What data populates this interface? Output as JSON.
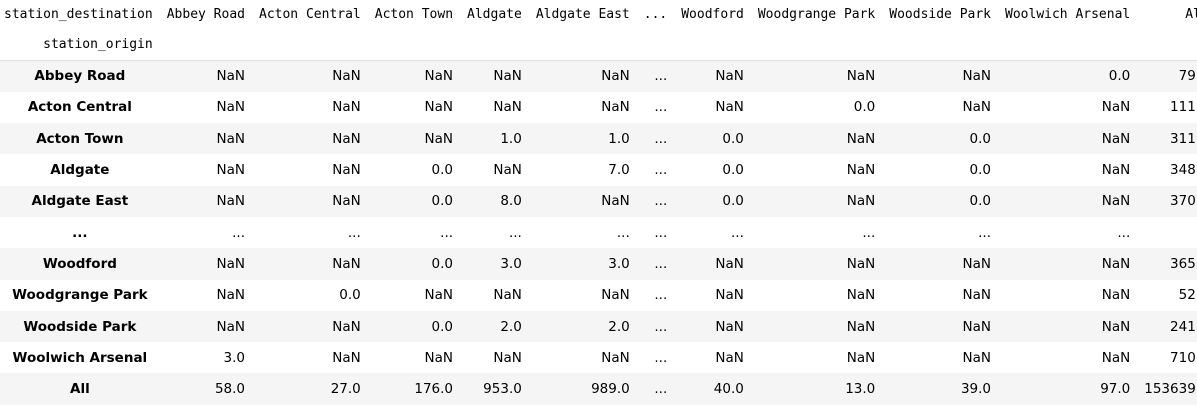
{
  "columns_name": "station_destination",
  "index_name": "station_origin",
  "columns": [
    "Abbey Road",
    "Acton Central",
    "Acton Town",
    "Aldgate",
    "Aldgate East",
    "...",
    "Woodford",
    "Woodgrange Park",
    "Woodside Park",
    "Woolwich Arsenal",
    "All"
  ],
  "rows": [
    {
      "label": "Abbey Road",
      "values": [
        "NaN",
        "NaN",
        "NaN",
        "NaN",
        "NaN",
        "...",
        "NaN",
        "NaN",
        "NaN",
        "0.0",
        "79.0"
      ]
    },
    {
      "label": "Acton Central",
      "values": [
        "NaN",
        "NaN",
        "NaN",
        "NaN",
        "NaN",
        "...",
        "NaN",
        "0.0",
        "NaN",
        "NaN",
        "111.0"
      ]
    },
    {
      "label": "Acton Town",
      "values": [
        "NaN",
        "NaN",
        "NaN",
        "1.0",
        "1.0",
        "...",
        "0.0",
        "NaN",
        "0.0",
        "NaN",
        "311.0"
      ]
    },
    {
      "label": "Aldgate",
      "values": [
        "NaN",
        "NaN",
        "0.0",
        "NaN",
        "7.0",
        "...",
        "0.0",
        "NaN",
        "0.0",
        "NaN",
        "348.0"
      ]
    },
    {
      "label": "Aldgate East",
      "values": [
        "NaN",
        "NaN",
        "0.0",
        "8.0",
        "NaN",
        "...",
        "0.0",
        "NaN",
        "0.0",
        "NaN",
        "370.0"
      ]
    },
    {
      "label": "...",
      "values": [
        "...",
        "...",
        "...",
        "...",
        "...",
        "...",
        "...",
        "...",
        "...",
        "...",
        "..."
      ]
    },
    {
      "label": "Woodford",
      "values": [
        "NaN",
        "NaN",
        "0.0",
        "3.0",
        "3.0",
        "...",
        "NaN",
        "NaN",
        "NaN",
        "NaN",
        "365.0"
      ]
    },
    {
      "label": "Woodgrange Park",
      "values": [
        "NaN",
        "0.0",
        "NaN",
        "NaN",
        "NaN",
        "...",
        "NaN",
        "NaN",
        "NaN",
        "NaN",
        "52.0"
      ]
    },
    {
      "label": "Woodside Park",
      "values": [
        "NaN",
        "NaN",
        "0.0",
        "2.0",
        "2.0",
        "...",
        "NaN",
        "NaN",
        "NaN",
        "NaN",
        "241.0"
      ]
    },
    {
      "label": "Woolwich Arsenal",
      "values": [
        "3.0",
        "NaN",
        "NaN",
        "NaN",
        "NaN",
        "...",
        "NaN",
        "NaN",
        "NaN",
        "NaN",
        "710.0"
      ]
    },
    {
      "label": "All",
      "values": [
        "58.0",
        "27.0",
        "176.0",
        "953.0",
        "989.0",
        "...",
        "40.0",
        "13.0",
        "39.0",
        "97.0",
        "153639.0"
      ]
    }
  ]
}
